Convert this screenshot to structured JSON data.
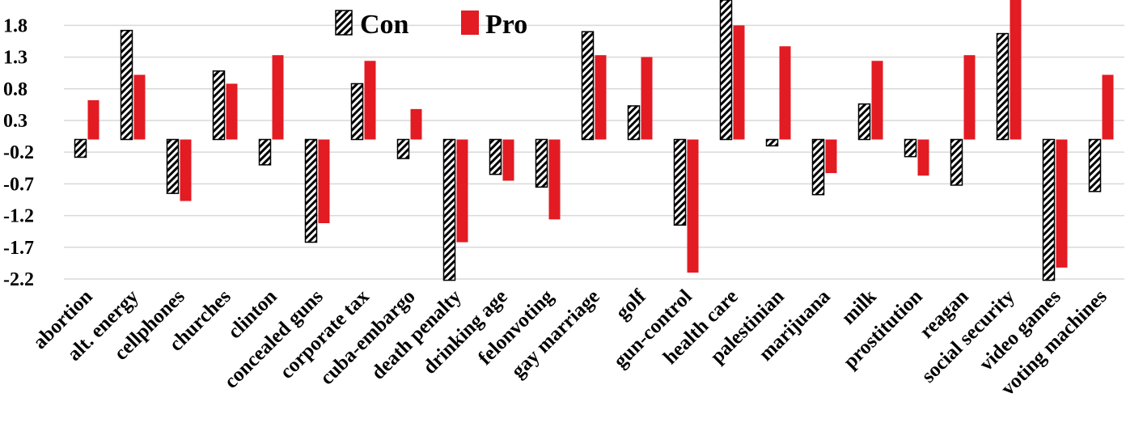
{
  "chart_data": {
    "type": "bar",
    "categories": [
      "abortion",
      "alt. energy",
      "cellphones",
      "churches",
      "clinton",
      "concealed guns",
      "corporate tax",
      "cuba-embargo",
      "death penalty",
      "drinking age",
      "felonvoting",
      "gay marriage",
      "golf",
      "gun-control",
      "health care",
      "palestinian",
      "marijuana",
      "milk",
      "prostitution",
      "reagan",
      "social security",
      "video games",
      "voting machines"
    ],
    "series": [
      {
        "name": "Con",
        "values": [
          -0.28,
          1.72,
          -0.85,
          1.08,
          -0.4,
          -1.62,
          0.88,
          -0.3,
          -2.22,
          -0.55,
          -0.75,
          1.7,
          0.53,
          -1.35,
          2.2,
          -0.1,
          -0.87,
          0.56,
          -0.27,
          -0.72,
          1.67,
          -2.22,
          -0.82
        ]
      },
      {
        "name": "Pro",
        "values": [
          0.62,
          1.02,
          -0.97,
          0.88,
          1.33,
          -1.32,
          1.24,
          0.48,
          -1.62,
          -0.65,
          -1.26,
          1.33,
          1.3,
          -2.1,
          1.8,
          1.47,
          -0.53,
          1.24,
          -0.57,
          1.33,
          2.2,
          -2.02,
          1.02
        ]
      }
    ],
    "yticks": [
      "1.8",
      "1.3",
      "0.8",
      "0.3",
      "-0.2",
      "-0.7",
      "-1.2",
      "-1.7",
      "-2.2"
    ],
    "ylim": [
      -2.2,
      2.2
    ],
    "grid": true,
    "legend": "top-center",
    "colors": {
      "con_stroke": "#000000",
      "con_fill": "#ffffff",
      "pro": "#e31b23",
      "grid": "#d9d9d9"
    },
    "title": "",
    "xlabel": "",
    "ylabel": ""
  }
}
